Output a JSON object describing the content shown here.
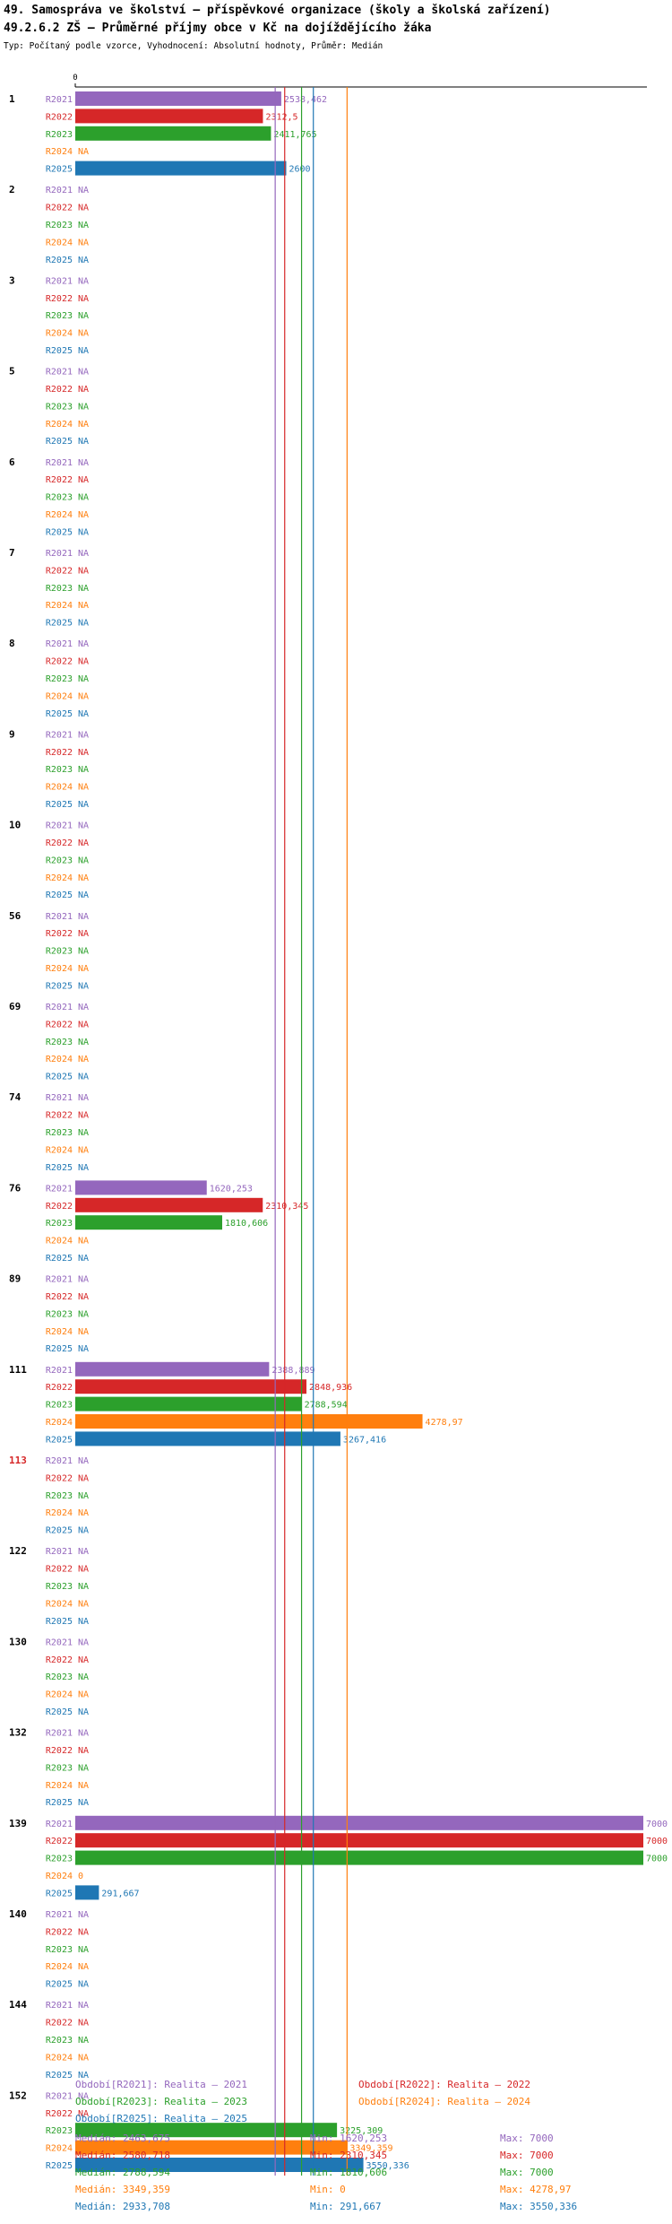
{
  "header": {
    "title_line1": "49. Samospráva ve školství – příspěvkové organizace (školy a školská zařízení)",
    "title_line2": "49.2.6.2 ZŠ – Průměrné příjmy obce v Kč na dojíždějícího žáka",
    "subtitle": "Typ: Počítaný podle vzorce, Vyhodnocení: Absolutní hodnoty, Průměr: Medián"
  },
  "colors": {
    "R2021": "#9467bd",
    "R2022": "#d62728",
    "R2023": "#2ca02c",
    "R2024": "#ff7f0e",
    "R2025": "#1f77b4",
    "highlight_group": "#d62728"
  },
  "chart_data": {
    "type": "bar",
    "orientation": "horizontal",
    "axis_zero_label": "0",
    "xlim": [
      0,
      7000
    ],
    "na_label": "NA",
    "series_names": [
      "R2021",
      "R2022",
      "R2023",
      "R2024",
      "R2025"
    ],
    "highlight_group": "113",
    "groups": [
      {
        "label": "1",
        "values": [
          2538.462,
          2312.5,
          2411.765,
          null,
          2600
        ]
      },
      {
        "label": "2",
        "values": [
          null,
          null,
          null,
          null,
          null
        ]
      },
      {
        "label": "3",
        "values": [
          null,
          null,
          null,
          null,
          null
        ]
      },
      {
        "label": "5",
        "values": [
          null,
          null,
          null,
          null,
          null
        ]
      },
      {
        "label": "6",
        "values": [
          null,
          null,
          null,
          null,
          null
        ]
      },
      {
        "label": "7",
        "values": [
          null,
          null,
          null,
          null,
          null
        ]
      },
      {
        "label": "8",
        "values": [
          null,
          null,
          null,
          null,
          null
        ]
      },
      {
        "label": "9",
        "values": [
          null,
          null,
          null,
          null,
          null
        ]
      },
      {
        "label": "10",
        "values": [
          null,
          null,
          null,
          null,
          null
        ]
      },
      {
        "label": "56",
        "values": [
          null,
          null,
          null,
          null,
          null
        ]
      },
      {
        "label": "69",
        "values": [
          null,
          null,
          null,
          null,
          null
        ]
      },
      {
        "label": "74",
        "values": [
          null,
          null,
          null,
          null,
          null
        ]
      },
      {
        "label": "76",
        "values": [
          1620.253,
          2310.345,
          1810.606,
          null,
          null
        ]
      },
      {
        "label": "89",
        "values": [
          null,
          null,
          null,
          null,
          null
        ]
      },
      {
        "label": "111",
        "values": [
          2388.889,
          2848.936,
          2788.594,
          4278.97,
          3267.416
        ]
      },
      {
        "label": "113",
        "values": [
          null,
          null,
          null,
          null,
          null
        ]
      },
      {
        "label": "122",
        "values": [
          null,
          null,
          null,
          null,
          null
        ]
      },
      {
        "label": "130",
        "values": [
          null,
          null,
          null,
          null,
          null
        ]
      },
      {
        "label": "132",
        "values": [
          null,
          null,
          null,
          null,
          null
        ]
      },
      {
        "label": "139",
        "values": [
          7000,
          7000,
          7000,
          0,
          291.667
        ]
      },
      {
        "label": "140",
        "values": [
          null,
          null,
          null,
          null,
          null
        ]
      },
      {
        "label": "144",
        "values": [
          null,
          null,
          null,
          null,
          null
        ]
      },
      {
        "label": "152",
        "values": [
          null,
          null,
          3225.309,
          3349.359,
          3550.336
        ]
      }
    ],
    "median_lines": [
      {
        "series": "R2021",
        "value": 2463.675
      },
      {
        "series": "R2022",
        "value": 2580.718
      },
      {
        "series": "R2023",
        "value": 2788.594
      },
      {
        "series": "R2024",
        "value": 3349.359
      },
      {
        "series": "R2025",
        "value": 2933.708
      }
    ]
  },
  "legend": [
    {
      "series": "R2021",
      "text": "Období[R2021]: Realita – 2021"
    },
    {
      "series": "R2022",
      "text": "Období[R2022]: Realita – 2022"
    },
    {
      "series": "R2023",
      "text": "Období[R2023]: Realita – 2023"
    },
    {
      "series": "R2024",
      "text": "Období[R2024]: Realita – 2024"
    },
    {
      "series": "R2025",
      "text": "Období[R2025]: Realita – 2025"
    }
  ],
  "stats": [
    {
      "series": "R2021",
      "median": "Medián: 2463,675",
      "min": "Min: 1620,253",
      "max": "Max: 7000"
    },
    {
      "series": "R2022",
      "median": "Medián: 2580,718",
      "min": "Min: 2310,345",
      "max": "Max: 7000"
    },
    {
      "series": "R2023",
      "median": "Medián: 2788,594",
      "min": "Min: 1810,606",
      "max": "Max: 7000"
    },
    {
      "series": "R2024",
      "median": "Medián: 3349,359",
      "min": "Min: 0",
      "max": "Max: 4278,97"
    },
    {
      "series": "R2025",
      "median": "Medián: 2933,708",
      "min": "Min: 291,667",
      "max": "Max: 3550,336"
    }
  ]
}
